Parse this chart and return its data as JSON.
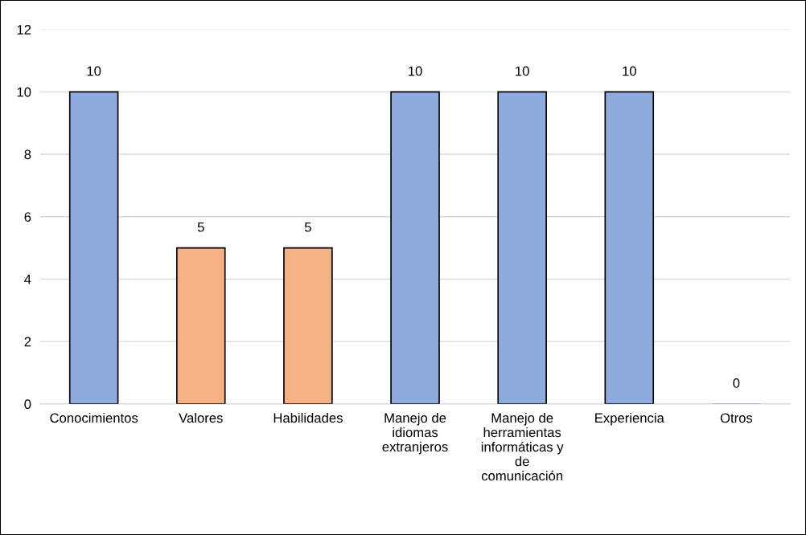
{
  "chart_data": {
    "type": "bar",
    "categories": [
      "Conocimientos",
      "Valores",
      "Habilidades",
      "Manejo de idiomas extranjeros",
      "Manejo de herramientas informáticas y de comunicación",
      "Experiencia",
      "Otros"
    ],
    "values": [
      10,
      5,
      5,
      10,
      10,
      10,
      0
    ],
    "colors": [
      "#8faadc",
      "#f4b183",
      "#f4b183",
      "#8faadc",
      "#8faadc",
      "#8faadc",
      "#8faadc"
    ],
    "ylim": [
      0,
      12
    ],
    "yticks": [
      0,
      2,
      4,
      6,
      8,
      10,
      12
    ],
    "grid": "y",
    "data_labels": true,
    "legend": false
  }
}
